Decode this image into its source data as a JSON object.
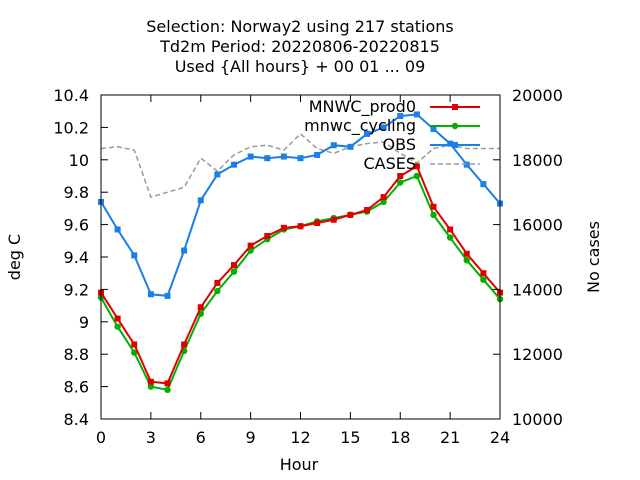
{
  "chart_data": {
    "type": "line",
    "title_lines": [
      "Selection: Norway2 using   217 stations",
      "Td2m   Period: 20220806-20220815",
      "Used {All hours} + 00 01 ... 09"
    ],
    "xlabel": "Hour",
    "ylabel": "deg C",
    "y2label": "No cases",
    "xlim": [
      0,
      24
    ],
    "ylim": [
      8.4,
      10.4
    ],
    "y2lim": [
      10000,
      20000
    ],
    "xticks": [
      0,
      3,
      6,
      9,
      12,
      15,
      18,
      21,
      24
    ],
    "yticks": [
      8.4,
      8.6,
      8.8,
      9,
      9.2,
      9.4,
      9.6,
      9.8,
      10,
      10.2,
      10.4
    ],
    "y2ticks": [
      10000,
      12000,
      14000,
      16000,
      18000,
      20000
    ],
    "grid": false,
    "legend_position": "top-right",
    "x": [
      0,
      1,
      2,
      3,
      4,
      5,
      6,
      7,
      8,
      9,
      10,
      11,
      12,
      13,
      14,
      15,
      16,
      17,
      18,
      19,
      20,
      21,
      22,
      23,
      24
    ],
    "series": [
      {
        "name": "MNWC_prod0",
        "axis": "y",
        "color": "#e00000",
        "marker": "square",
        "values": [
          9.18,
          9.02,
          8.86,
          8.63,
          8.62,
          8.86,
          9.09,
          9.24,
          9.35,
          9.47,
          9.53,
          9.58,
          9.59,
          9.61,
          9.63,
          9.66,
          9.69,
          9.77,
          9.9,
          9.96,
          9.71,
          9.57,
          9.42,
          9.3,
          9.18
        ]
      },
      {
        "name": "mnwc_cycling",
        "axis": "y",
        "color": "#00b000",
        "marker": "circle",
        "values": [
          9.15,
          8.97,
          8.81,
          8.6,
          8.58,
          8.82,
          9.05,
          9.19,
          9.31,
          9.44,
          9.51,
          9.57,
          9.59,
          9.62,
          9.64,
          9.66,
          9.68,
          9.74,
          9.86,
          9.9,
          9.66,
          9.52,
          9.38,
          9.26,
          9.14
        ]
      },
      {
        "name": "OBS",
        "axis": "y",
        "color": "#1a7fe6",
        "marker": "square",
        "values": [
          9.74,
          9.57,
          9.41,
          9.17,
          9.16,
          9.44,
          9.75,
          9.91,
          9.97,
          10.02,
          10.01,
          10.02,
          10.01,
          10.03,
          10.09,
          10.08,
          10.16,
          10.2,
          10.27,
          10.28,
          10.19,
          10.1,
          9.97,
          9.85,
          9.73
        ]
      },
      {
        "name": "CASES",
        "axis": "y2",
        "color": "#999999",
        "marker": "none",
        "dashed": true,
        "values": [
          18350,
          18400,
          18300,
          16850,
          17000,
          17150,
          18050,
          17650,
          18150,
          18400,
          18450,
          18300,
          18800,
          18350,
          18200,
          18400,
          18500,
          18550,
          18200,
          17900,
          18350,
          18450,
          18350,
          18350,
          18350
        ]
      }
    ]
  }
}
